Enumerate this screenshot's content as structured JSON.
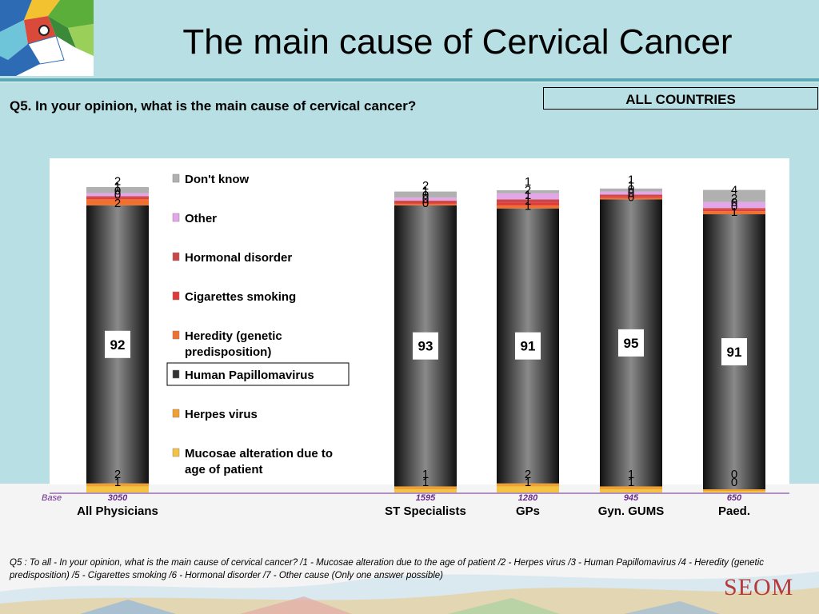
{
  "title": "The main cause of Cervical Cancer",
  "question": "Q5. In your opinion, what is the main cause of cervical cancer?",
  "scope_label": "ALL COUNTRIES",
  "base_label": "Base",
  "footnote": "Q5 : To all - In your opinion, what is the main cause of cervical cancer? /1 - Mucosae alteration due to the age of patient /2 - Herpes virus /3 - Human Papillomavirus /4 - Heredity (genetic predisposition) /5 - Cigarettes smoking /6 - Hormonal disorder /7 - Other cause (Only one answer possible)",
  "brand": "SEOM",
  "colors": {
    "mucosae": "#f5c342",
    "herpes": "#f0a030",
    "hpv": "#2a2a2a",
    "heredity": "#f07030",
    "cigarettes": "#e03a3a",
    "hormonal": "#c84848",
    "other": "#e3a6e8",
    "dont_know": "#b0b0b0",
    "panel": "#ffffff",
    "background": "#b8e0e4",
    "base_text": "#6a2a8a"
  },
  "chart_data": {
    "type": "bar",
    "stacked": true,
    "categories": [
      "All Physicians",
      "ST Specialists",
      "GPs",
      "Gyn. GUMS",
      "Paed."
    ],
    "bases": [
      "3050",
      "1595",
      "1280",
      "945",
      "650"
    ],
    "series": [
      {
        "key": "mucosae",
        "name": "Mucosae alteration due to age of patient",
        "values": [
          2,
          1,
          2,
          1,
          0
        ]
      },
      {
        "key": "herpes",
        "name": "Herpes virus",
        "values": [
          1,
          1,
          1,
          1,
          0
        ]
      },
      {
        "key": "hpv",
        "name": "Human Papillomavirus",
        "values": [
          92,
          93,
          91,
          95,
          91
        ]
      },
      {
        "key": "heredity",
        "name": "Heredity (genetic predisposition)",
        "values": [
          2,
          0,
          1,
          0,
          1
        ]
      },
      {
        "key": "cigarettes",
        "name": "Cigarettes smoking",
        "values": [
          0,
          0,
          1,
          0,
          0
        ]
      },
      {
        "key": "hormonal",
        "name": "Hormonal disorder",
        "values": [
          0,
          0,
          1,
          0,
          0
        ]
      },
      {
        "key": "other",
        "name": "Other",
        "values": [
          1,
          1,
          2,
          1,
          2
        ]
      },
      {
        "key": "dont_know",
        "name": "Don't know",
        "values": [
          2,
          2,
          1,
          1,
          4
        ]
      }
    ],
    "legend_order": [
      "dont_know",
      "other",
      "hormonal",
      "cigarettes",
      "heredity",
      "hpv",
      "herpes",
      "mucosae"
    ],
    "legend_highlight": "hpv",
    "legend_position": "center-left",
    "ylim": [
      0,
      100
    ]
  }
}
